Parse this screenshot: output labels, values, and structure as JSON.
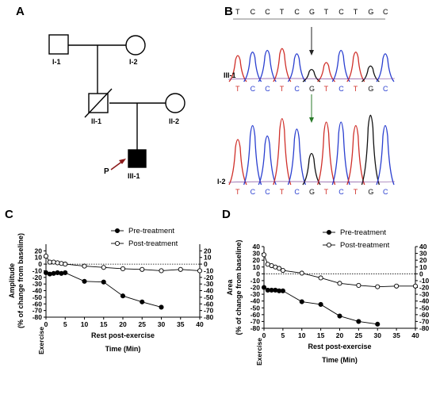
{
  "panels": {
    "a": "A",
    "b": "B",
    "c": "C",
    "d": "D"
  },
  "pedigree": {
    "individuals": [
      {
        "id": "I-1",
        "sex": "male",
        "affected": false,
        "deceased": false
      },
      {
        "id": "I-2",
        "sex": "female",
        "affected": false,
        "deceased": false
      },
      {
        "id": "II-1",
        "sex": "male",
        "affected": false,
        "deceased": true
      },
      {
        "id": "II-2",
        "sex": "female",
        "affected": false,
        "deceased": false
      },
      {
        "id": "III-1",
        "sex": "male",
        "affected": true,
        "deceased": false
      }
    ],
    "proband_marker": "P"
  },
  "sequencing": {
    "reference": [
      "T",
      "C",
      "C",
      "T",
      "C",
      "G",
      "T",
      "C",
      "T",
      "G",
      "C"
    ],
    "tracks": [
      {
        "label": "III-1",
        "bases": [
          "T",
          "C",
          "C",
          "T",
          "C",
          "G",
          "T",
          "C",
          "T",
          "G",
          "C"
        ]
      },
      {
        "label": "I-2",
        "bases": [
          "T",
          "C",
          "C",
          "T",
          "C",
          "G",
          "T",
          "C",
          "T",
          "G",
          "C"
        ]
      }
    ],
    "colors": {
      "T": "#d0302a",
      "C": "#2a3fd0",
      "G": "#111111",
      "A": "#2a9a2a"
    },
    "arrow_color": "#2a7a2a"
  },
  "chart_data": [
    {
      "id": "C",
      "type": "line",
      "ylabel_1": "Amplitude",
      "ylabel_2": "(% of change from baseline)",
      "xlabel_1": "Rest post-exercise",
      "xlabel_2": "Time (Min)",
      "x_origin_label": "Exercise",
      "ylim": [
        -80,
        30
      ],
      "yticks": [
        "20",
        "10",
        "0",
        "-10",
        "-20",
        "-30",
        "-40",
        "-50",
        "-60",
        "-70",
        "-80"
      ],
      "xlim": [
        0,
        40
      ],
      "xticks": [
        "0",
        "5",
        "10",
        "15",
        "20",
        "25",
        "30",
        "35",
        "40"
      ],
      "legend_position": "top-right",
      "reference_line_y": 0,
      "series": [
        {
          "name": "Pre-treatment",
          "marker": "filled",
          "x": [
            0,
            1,
            2,
            3,
            4,
            5,
            10,
            15,
            20,
            25,
            30
          ],
          "y": [
            -13,
            -15,
            -14,
            -13,
            -14,
            -13,
            -26,
            -27,
            -48,
            -57,
            -65
          ]
        },
        {
          "name": "Post-treatment",
          "marker": "open",
          "x": [
            0,
            1,
            2,
            3,
            4,
            5,
            10,
            15,
            20,
            25,
            30,
            35,
            40
          ],
          "y": [
            12,
            3,
            3,
            2,
            1,
            0,
            -3,
            -5,
            -7,
            -8,
            -10,
            -8,
            -10
          ]
        }
      ]
    },
    {
      "id": "D",
      "type": "line",
      "ylabel_1": "Area",
      "ylabel_2": "(% of change from baseline)",
      "xlabel_1": "Rest post-exercise",
      "xlabel_2": "Time (Min)",
      "x_origin_label": "Exercise",
      "ylim": [
        -80,
        40
      ],
      "yticks": [
        "40",
        "30",
        "20",
        "10",
        "0",
        "-10",
        "-20",
        "-30",
        "-40",
        "-50",
        "-60",
        "-70",
        "-80"
      ],
      "xlim": [
        0,
        40
      ],
      "xticks": [
        "0",
        "5",
        "10",
        "15",
        "20",
        "25",
        "30",
        "35",
        "40"
      ],
      "legend_position": "top-right",
      "reference_line_y": 0,
      "series": [
        {
          "name": "Pre-treatment",
          "marker": "filled",
          "x": [
            0,
            1,
            2,
            3,
            4,
            5,
            10,
            15,
            20,
            25,
            30
          ],
          "y": [
            -20,
            -24,
            -24,
            -24,
            -25,
            -25,
            -41,
            -45,
            -62,
            -70,
            -74
          ]
        },
        {
          "name": "Post-treatment",
          "marker": "open",
          "x": [
            0,
            1,
            2,
            3,
            4,
            5,
            10,
            15,
            20,
            25,
            30,
            35,
            40
          ],
          "y": [
            28,
            14,
            12,
            10,
            8,
            5,
            1,
            -6,
            -14,
            -17,
            -19,
            -18,
            -18
          ]
        }
      ]
    }
  ]
}
